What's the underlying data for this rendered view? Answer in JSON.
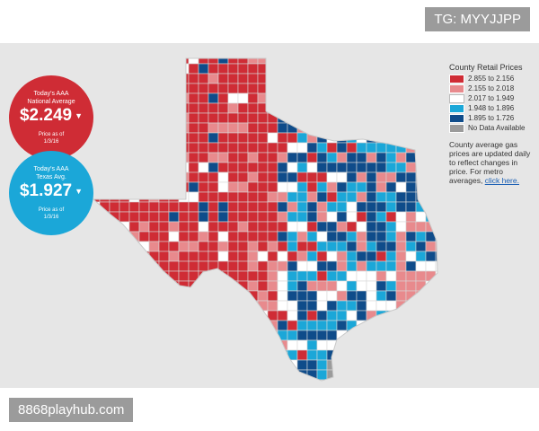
{
  "watermark_top": "TG: MYYJJPP",
  "watermark_bottom": "8868playhub.com",
  "national_badge": {
    "title_line1": "Today's AAA",
    "title_line2": "National Average",
    "price": "$2.249",
    "note_line1": "Price as of",
    "note_line2": "1/3/16",
    "color": "#cf2c35"
  },
  "texas_badge": {
    "title_line1": "Today's AAA",
    "title_line2": "Texas Avg.",
    "price": "$1.927",
    "note_line1": "Price as of",
    "note_line2": "1/3/16",
    "color": "#1ba7d8"
  },
  "legend": {
    "title": "County Retail Prices",
    "items": [
      {
        "label": "2.855 to 2.156",
        "color": "#cf2c35"
      },
      {
        "label": "2.155 to 2.018",
        "color": "#e88a8d"
      },
      {
        "label": "2.017 to 1.949",
        "color": "#ffffff"
      },
      {
        "label": "1.948 to 1.896",
        "color": "#1ba7d8"
      },
      {
        "label": "1.895 to 1.726",
        "color": "#0f4c8a"
      },
      {
        "label": "No Data Available",
        "color": "#9b9b9b"
      }
    ],
    "description": "County average gas prices are updated daily to reflect changes in price. For metro averages,",
    "link_text": "click here."
  },
  "map": {
    "region": "Texas",
    "colors": {
      "band1": "#cf2c35",
      "band2": "#e88a8d",
      "band3": "#ffffff",
      "band4": "#1ba7d8",
      "band5": "#0f4c8a",
      "nodata": "#9b9b9b",
      "county_border": "#d8d8d8"
    }
  }
}
